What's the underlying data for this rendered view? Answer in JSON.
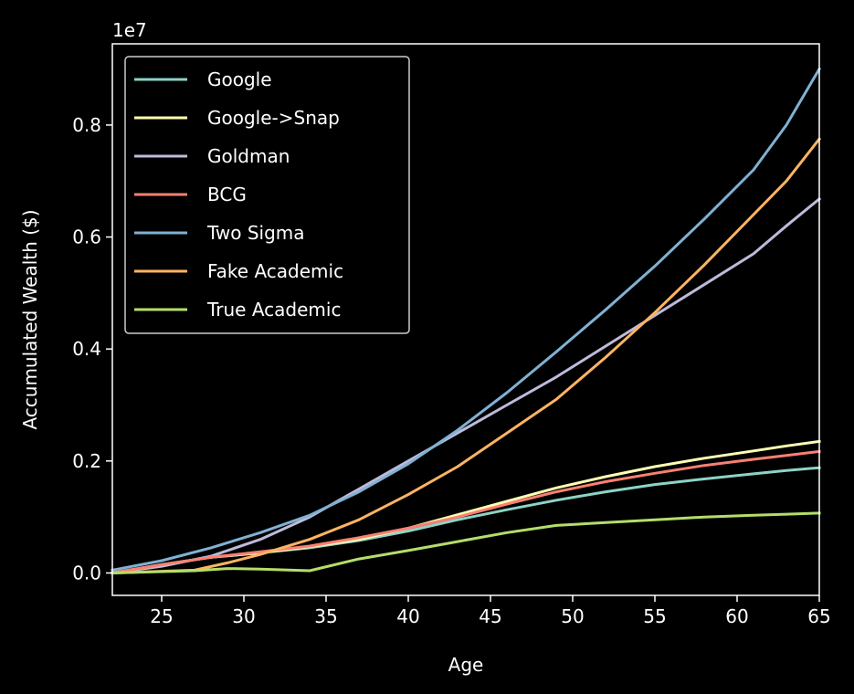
{
  "chart_data": {
    "type": "line",
    "title": "",
    "xlabel": "Age",
    "ylabel": "Accumulated Wealth ($)",
    "y_offset_label": "1e7",
    "xlim": [
      22,
      65
    ],
    "ylim": [
      -0.04,
      0.945
    ],
    "x_ticks": [
      25,
      30,
      35,
      40,
      45,
      50,
      55,
      60,
      65
    ],
    "y_ticks": [
      0.0,
      0.2,
      0.4,
      0.6,
      0.8
    ],
    "y_tick_labels": [
      "0.0",
      "0.2",
      "0.4",
      "0.6",
      "0.8"
    ],
    "grid": false,
    "legend_position": "top-left",
    "series": [
      {
        "name": "Google",
        "color": "#8dd3c7",
        "points": [
          [
            22,
            0.0
          ],
          [
            25,
            0.015
          ],
          [
            28,
            0.028
          ],
          [
            31,
            0.036
          ],
          [
            34,
            0.045
          ],
          [
            37,
            0.058
          ],
          [
            40,
            0.075
          ],
          [
            43,
            0.095
          ],
          [
            46,
            0.113
          ],
          [
            49,
            0.13
          ],
          [
            52,
            0.145
          ],
          [
            55,
            0.158
          ],
          [
            58,
            0.168
          ],
          [
            61,
            0.177
          ],
          [
            63,
            0.183
          ],
          [
            65,
            0.188
          ]
        ]
      },
      {
        "name": "Google->Snap",
        "color": "#ffffb3",
        "points": [
          [
            22,
            0.0
          ],
          [
            25,
            0.015
          ],
          [
            28,
            0.028
          ],
          [
            31,
            0.036
          ],
          [
            34,
            0.047
          ],
          [
            37,
            0.06
          ],
          [
            40,
            0.08
          ],
          [
            43,
            0.104
          ],
          [
            46,
            0.128
          ],
          [
            49,
            0.152
          ],
          [
            52,
            0.172
          ],
          [
            55,
            0.19
          ],
          [
            58,
            0.205
          ],
          [
            61,
            0.218
          ],
          [
            63,
            0.227
          ],
          [
            65,
            0.235
          ]
        ]
      },
      {
        "name": "Goldman",
        "color": "#bebada",
        "points": [
          [
            22,
            0.0
          ],
          [
            25,
            0.012
          ],
          [
            28,
            0.03
          ],
          [
            31,
            0.06
          ],
          [
            34,
            0.1
          ],
          [
            37,
            0.15
          ],
          [
            40,
            0.2
          ],
          [
            43,
            0.25
          ],
          [
            46,
            0.3
          ],
          [
            49,
            0.35
          ],
          [
            52,
            0.405
          ],
          [
            55,
            0.46
          ],
          [
            58,
            0.515
          ],
          [
            61,
            0.57
          ],
          [
            63,
            0.62
          ],
          [
            65,
            0.668
          ]
        ]
      },
      {
        "name": "BCG",
        "color": "#fb8072",
        "points": [
          [
            22,
            0.0
          ],
          [
            25,
            0.015
          ],
          [
            28,
            0.028
          ],
          [
            31,
            0.038
          ],
          [
            34,
            0.048
          ],
          [
            37,
            0.063
          ],
          [
            40,
            0.08
          ],
          [
            43,
            0.1
          ],
          [
            46,
            0.123
          ],
          [
            49,
            0.145
          ],
          [
            52,
            0.163
          ],
          [
            55,
            0.178
          ],
          [
            58,
            0.192
          ],
          [
            61,
            0.203
          ],
          [
            63,
            0.21
          ],
          [
            65,
            0.217
          ]
        ]
      },
      {
        "name": "Two Sigma",
        "color": "#80b1d3",
        "points": [
          [
            22,
            0.005
          ],
          [
            25,
            0.022
          ],
          [
            28,
            0.045
          ],
          [
            31,
            0.072
          ],
          [
            34,
            0.103
          ],
          [
            37,
            0.145
          ],
          [
            40,
            0.195
          ],
          [
            43,
            0.255
          ],
          [
            46,
            0.322
          ],
          [
            49,
            0.395
          ],
          [
            52,
            0.47
          ],
          [
            55,
            0.548
          ],
          [
            58,
            0.632
          ],
          [
            61,
            0.72
          ],
          [
            63,
            0.8
          ],
          [
            65,
            0.9
          ]
        ]
      },
      {
        "name": "Fake Academic",
        "color": "#fdb462",
        "points": [
          [
            22,
            0.0
          ],
          [
            25,
            0.003
          ],
          [
            27,
            0.005
          ],
          [
            29,
            0.018
          ],
          [
            31,
            0.033
          ],
          [
            34,
            0.06
          ],
          [
            37,
            0.095
          ],
          [
            40,
            0.14
          ],
          [
            43,
            0.19
          ],
          [
            46,
            0.25
          ],
          [
            49,
            0.31
          ],
          [
            52,
            0.385
          ],
          [
            55,
            0.465
          ],
          [
            58,
            0.55
          ],
          [
            61,
            0.64
          ],
          [
            63,
            0.7
          ],
          [
            65,
            0.775
          ]
        ]
      },
      {
        "name": "True Academic",
        "color": "#b3de69",
        "points": [
          [
            22,
            0.0
          ],
          [
            27,
            0.004
          ],
          [
            29,
            0.008
          ],
          [
            31,
            0.007
          ],
          [
            34,
            0.004
          ],
          [
            37,
            0.025
          ],
          [
            40,
            0.04
          ],
          [
            43,
            0.056
          ],
          [
            46,
            0.072
          ],
          [
            49,
            0.085
          ],
          [
            52,
            0.09
          ],
          [
            55,
            0.095
          ],
          [
            58,
            0.1
          ],
          [
            61,
            0.103
          ],
          [
            63,
            0.105
          ],
          [
            65,
            0.107
          ]
        ]
      }
    ]
  }
}
